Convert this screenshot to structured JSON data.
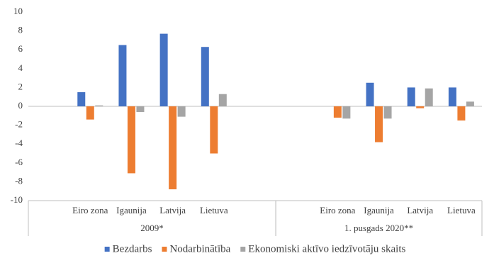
{
  "chart_data": {
    "type": "bar",
    "groups": [
      {
        "name": "2009*",
        "categories": [
          null,
          "Eiro zona",
          "Igaunija",
          "Latvija",
          "Lietuva",
          null
        ]
      },
      {
        "name": "1. pusgads 2020**",
        "categories": [
          null,
          "Eiro zona",
          "Igaunija",
          "Latvija",
          "Lietuva"
        ]
      }
    ],
    "series": [
      {
        "name": "Bezdarbs",
        "color": "#4472c4",
        "values": [
          null,
          1.5,
          6.5,
          7.7,
          6.3,
          null,
          null,
          0,
          2.5,
          2.0,
          2.0
        ]
      },
      {
        "name": "Nodarbinātība",
        "color": "#ed7d31",
        "values": [
          null,
          -1.4,
          -7.1,
          -8.8,
          -5.0,
          null,
          null,
          -1.2,
          -3.8,
          -0.2,
          -1.5
        ]
      },
      {
        "name": "Ekonomiski aktīvo iedzīvotāju skaits",
        "color": "#a5a5a5",
        "values": [
          null,
          0.1,
          -0.6,
          -1.1,
          1.3,
          null,
          null,
          -1.3,
          -1.3,
          1.9,
          0.5
        ]
      }
    ],
    "ylim": [
      -10,
      10
    ],
    "yticks": [
      -10,
      -8,
      -6,
      -4,
      -2,
      0,
      2,
      4,
      6,
      8,
      10
    ],
    "grid": false,
    "legend": "bottom"
  }
}
